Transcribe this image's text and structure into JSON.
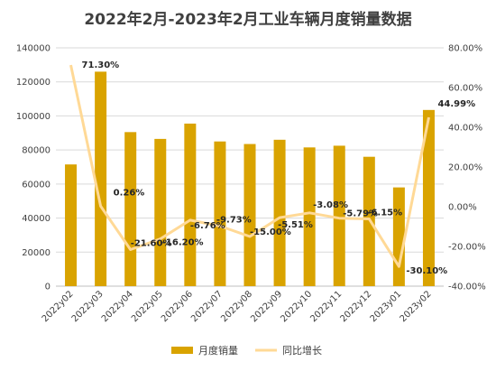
{
  "chart_data": {
    "type": "bar",
    "title": "2022年2月-2023年2月工业车辆月度销量数据",
    "categories": [
      "2022y02",
      "2022y03",
      "2022y04",
      "2022y05",
      "2022y06",
      "2022y07",
      "2022y08",
      "2022y09",
      "2022y10",
      "2022y11",
      "2022y12",
      "2023y01",
      "2023y02"
    ],
    "series": [
      {
        "name": "月度销量",
        "type": "bar",
        "axis": "left",
        "color": "#d9a300",
        "values": [
          71500,
          126000,
          90500,
          86500,
          95500,
          85000,
          83500,
          86000,
          81500,
          82500,
          76000,
          58000,
          103500
        ]
      },
      {
        "name": "同比增长",
        "type": "line",
        "axis": "right",
        "color": "#ffd996",
        "values": [
          71.3,
          0.26,
          -21.6,
          -16.2,
          -6.76,
          -9.73,
          -15.0,
          -5.51,
          -3.08,
          -5.79,
          -6.15,
          -30.1,
          44.99
        ],
        "labels": [
          "71.30%",
          "0.26%",
          "-21.60%",
          "-16.20%",
          "-6.76%",
          "-9.73%",
          "-15.00%",
          "-5.51%",
          "-3.08%",
          "-5.79%",
          "-6.15%",
          "-30.10%",
          "44.99%"
        ]
      }
    ],
    "y_left": {
      "min": 0,
      "max": 140000,
      "ticks": [
        "0",
        "20000",
        "40000",
        "60000",
        "80000",
        "100000",
        "120000",
        "140000"
      ]
    },
    "y_right": {
      "min": -40,
      "max": 80,
      "ticks": [
        "-40.00%",
        "-20.00%",
        "0.00%",
        "20.00%",
        "40.00%",
        "60.00%",
        "80.00%"
      ]
    },
    "grid": true,
    "legend_position": "bottom"
  }
}
